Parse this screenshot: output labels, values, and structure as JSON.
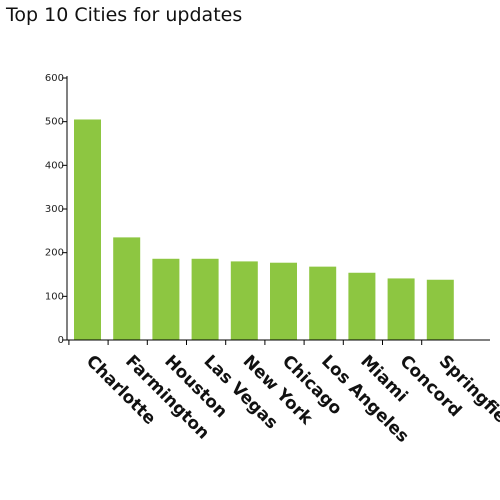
{
  "chart_data": {
    "type": "bar",
    "title": "Top 10 Cities for updates",
    "xlabel": "",
    "ylabel": "",
    "categories": [
      "Charlotte",
      "Farmington",
      "Houston",
      "Las Vegas",
      "New York",
      "Chicago",
      "Los Angeles",
      "Miami",
      "Concord",
      "Springfield"
    ],
    "values": [
      505,
      235,
      186,
      186,
      180,
      177,
      168,
      154,
      141,
      138
    ],
    "ylim": [
      0,
      600
    ],
    "yticks": [
      0,
      100,
      200,
      300,
      400,
      500,
      600
    ],
    "bar_color": "#8dc641",
    "grid": false,
    "legend": "none"
  }
}
